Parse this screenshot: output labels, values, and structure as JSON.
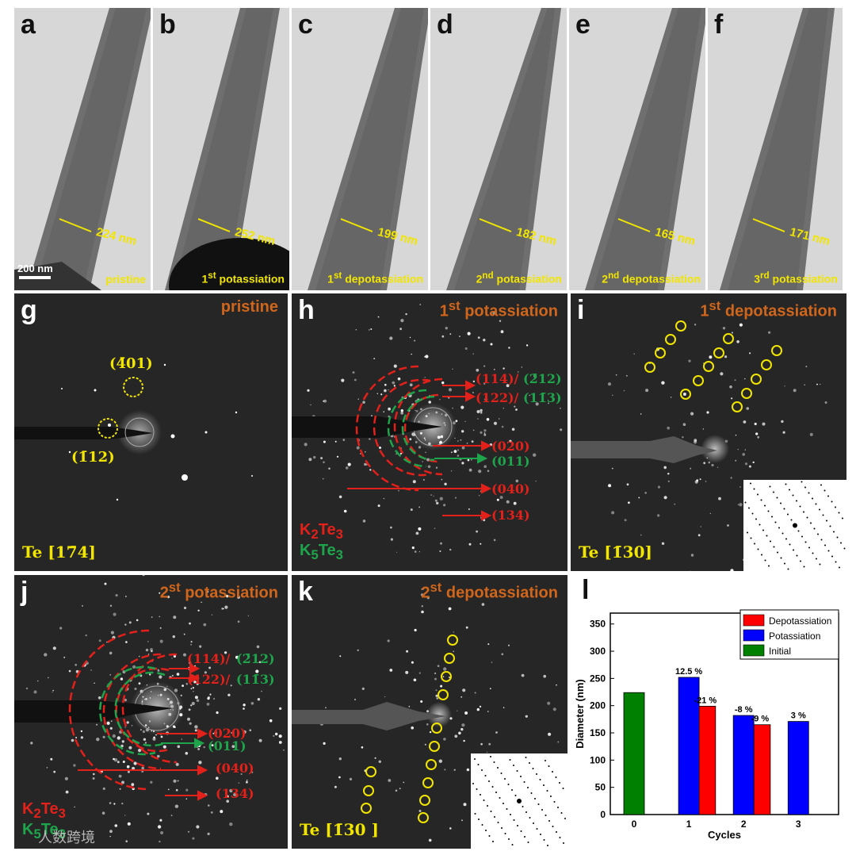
{
  "tem_panels": [
    {
      "letter": "a",
      "measure": "224 nm",
      "condition": "pristine",
      "scale": "200 nm"
    },
    {
      "letter": "b",
      "measure": "252 nm",
      "condition": "1st potassiation"
    },
    {
      "letter": "c",
      "measure": "199 nm",
      "condition": "1st depotassiation"
    },
    {
      "letter": "d",
      "measure": "182 nm",
      "condition": "2nd potassiation"
    },
    {
      "letter": "e",
      "measure": "165 nm",
      "condition": "2nd depotassiation"
    },
    {
      "letter": "f",
      "measure": "171 nm",
      "condition": "3rd potassiation"
    }
  ],
  "g": {
    "letter": "g",
    "title": "pristine",
    "index1": "(4̄01)",
    "index2": "(1̄12)",
    "zone": "Te [17̄4]"
  },
  "h": {
    "letter": "h",
    "title": "1st potassiation",
    "idx_a_red": "(114)/",
    "idx_a_green": "(2̄12)",
    "idx_b_red": "(122)/",
    "idx_b_green": "(11̄3)",
    "idx_c": "(020)",
    "idx_d": "(011)",
    "idx_e": "(040)",
    "idx_f": "(134)",
    "legend_red": "K2Te3",
    "legend_green": "K5Te3"
  },
  "i": {
    "letter": "i",
    "title": "1st depotassiation",
    "zone": "Te [1̄30]"
  },
  "j": {
    "letter": "j",
    "title": "2st potassiation",
    "idx_a_red": "(114)/",
    "idx_a_green": "(2̄12)",
    "idx_b_red": "(122)/",
    "idx_b_green": "(11̄3)",
    "idx_c": "(020)",
    "idx_d": "(011)",
    "idx_e": "(040)",
    "idx_f": "(134)",
    "legend_red": "K2Te3",
    "legend_green": "K5Te3"
  },
  "k": {
    "letter": "k",
    "title": "2st depotassiation",
    "zone": "Te [1̄30 ]"
  },
  "l": {
    "letter": "l"
  },
  "watermark": "人数跨境",
  "chart_data": {
    "type": "bar",
    "xlabel": "Cycles",
    "ylabel": "Diameter (nm)",
    "ylim": [
      0,
      370
    ],
    "yticks": [
      0,
      50,
      100,
      150,
      200,
      250,
      300,
      350
    ],
    "xticks": [
      0,
      1,
      2,
      3
    ],
    "legend_position": "top-right",
    "series": [
      {
        "name": "Depotassiation",
        "color": "#ff0000",
        "x": [
          1.3,
          2.3
        ],
        "values": [
          199,
          165
        ]
      },
      {
        "name": "Potassiation",
        "color": "#0000ff",
        "x": [
          1,
          2,
          3
        ],
        "values": [
          252,
          182,
          171
        ]
      },
      {
        "name": "Initial",
        "color": "#008000",
        "x": [
          0
        ],
        "values": [
          224
        ]
      }
    ],
    "annotations": [
      {
        "x": 1,
        "text": "12.5 %"
      },
      {
        "x": 1.3,
        "text": "-21 %"
      },
      {
        "x": 2,
        "text": "-8 %"
      },
      {
        "x": 2.3,
        "text": "-9 %"
      },
      {
        "x": 3,
        "text": "3 %"
      }
    ]
  }
}
